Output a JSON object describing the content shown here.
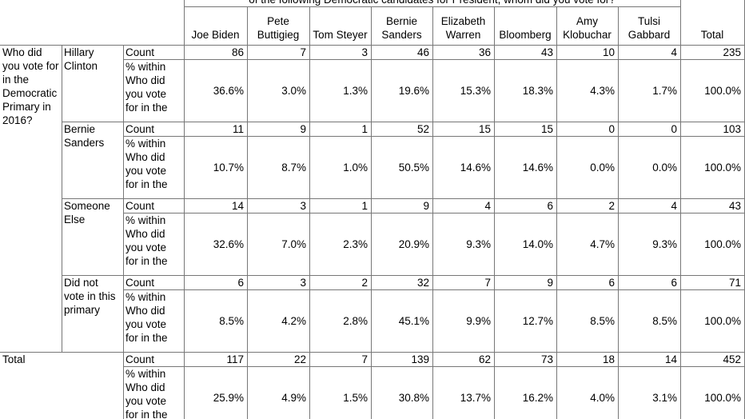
{
  "table": {
    "super_header": "of the following Democratic candidates for President, whom did you vote for?",
    "columns": [
      "Joe Biden",
      "Pete Buttigieg",
      "Tom Steyer",
      "Bernie Sanders",
      "Elizabeth Warren",
      "Bloomberg",
      "Amy Klobuchar",
      "Tulsi Gabbard",
      "Total"
    ],
    "row_variable": "Who did you vote for in the Democratic Primary in 2016?",
    "groups": [
      {
        "label": "Hillary Clinton",
        "count_label": "Count",
        "count": [
          86,
          7,
          3,
          46,
          36,
          43,
          10,
          4,
          235
        ],
        "pct_label": "% within Who did you vote for in the",
        "pct": [
          "36.6%",
          "3.0%",
          "1.3%",
          "19.6%",
          "15.3%",
          "18.3%",
          "4.3%",
          "1.7%",
          "100.0%"
        ]
      },
      {
        "label": "Bernie Sanders",
        "count_label": "Count",
        "count": [
          11,
          9,
          1,
          52,
          15,
          15,
          0,
          0,
          103
        ],
        "pct_label": "% within Who did you vote for in the",
        "pct": [
          "10.7%",
          "8.7%",
          "1.0%",
          "50.5%",
          "14.6%",
          "14.6%",
          "0.0%",
          "0.0%",
          "100.0%"
        ]
      },
      {
        "label": "Someone Else",
        "count_label": "Count",
        "count": [
          14,
          3,
          1,
          9,
          4,
          6,
          2,
          4,
          43
        ],
        "pct_label": "% within Who did you vote for in the",
        "pct": [
          "32.6%",
          "7.0%",
          "2.3%",
          "20.9%",
          "9.3%",
          "14.0%",
          "4.7%",
          "9.3%",
          "100.0%"
        ]
      },
      {
        "label": "Did not vote in this primary",
        "count_label": "Count",
        "count": [
          6,
          3,
          2,
          32,
          7,
          9,
          6,
          6,
          71
        ],
        "pct_label": "% within Who did you vote for in the",
        "pct": [
          "8.5%",
          "4.2%",
          "2.8%",
          "45.1%",
          "9.9%",
          "12.7%",
          "8.5%",
          "8.5%",
          "100.0%"
        ]
      }
    ],
    "total": {
      "label": "Total",
      "count_label": "Count",
      "count": [
        117,
        22,
        7,
        139,
        62,
        73,
        18,
        14,
        452
      ],
      "pct_label": "% within Who did you vote for in the",
      "pct": [
        "25.9%",
        "4.9%",
        "1.5%",
        "30.8%",
        "13.7%",
        "16.2%",
        "4.0%",
        "3.1%",
        "100.0%"
      ]
    }
  }
}
